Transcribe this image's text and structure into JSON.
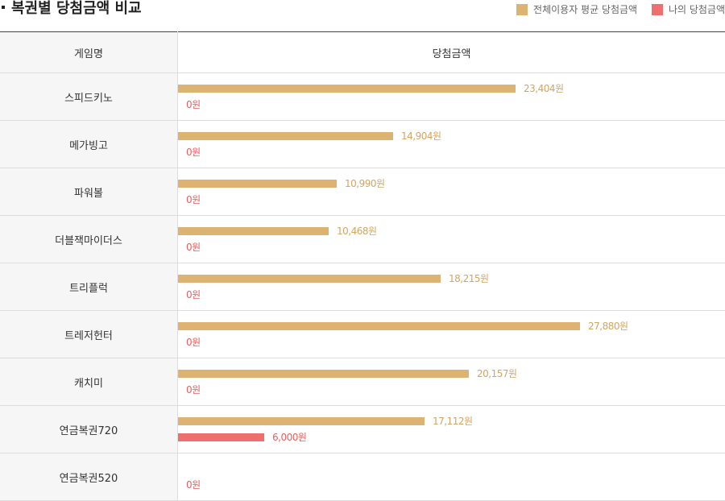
{
  "title": "복권별 당첨금액 비교",
  "legend": {
    "avg": "전체이용자 평균 당첨금액",
    "mine": "나의 당첨금액"
  },
  "colors": {
    "avg": "#dcb370",
    "mine": "#ee6f6e"
  },
  "chart_data": {
    "type": "bar",
    "orientation": "horizontal",
    "header": {
      "game": "게임명",
      "amount": "당첨금액"
    },
    "unit": "원",
    "xlim": [
      0,
      30000
    ],
    "rows": [
      {
        "name": "스피드키노",
        "avg": 23404,
        "avg_label": "23,404원",
        "mine": 0,
        "mine_label": "0원"
      },
      {
        "name": "메가빙고",
        "avg": 14904,
        "avg_label": "14,904원",
        "mine": 0,
        "mine_label": "0원"
      },
      {
        "name": "파워볼",
        "avg": 10990,
        "avg_label": "10,990원",
        "mine": 0,
        "mine_label": "0원"
      },
      {
        "name": "더블잭마이더스",
        "avg": 10468,
        "avg_label": "10,468원",
        "mine": 0,
        "mine_label": "0원"
      },
      {
        "name": "트리플럭",
        "avg": 18215,
        "avg_label": "18,215원",
        "mine": 0,
        "mine_label": "0원"
      },
      {
        "name": "트레저헌터",
        "avg": 27880,
        "avg_label": "27,880원",
        "mine": 0,
        "mine_label": "0원"
      },
      {
        "name": "캐치미",
        "avg": 20157,
        "avg_label": "20,157원",
        "mine": 0,
        "mine_label": "0원"
      },
      {
        "name": "연금복권720",
        "avg": 17112,
        "avg_label": "17,112원",
        "mine": 6000,
        "mine_label": "6,000원"
      },
      {
        "name": "연금복권520",
        "avg": null,
        "avg_label": null,
        "mine": 0,
        "mine_label": "0원"
      }
    ]
  }
}
